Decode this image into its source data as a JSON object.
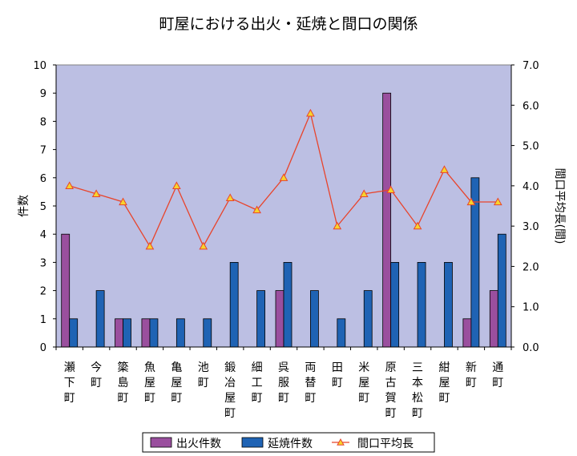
{
  "chart_data": {
    "type": "bar",
    "title": "町屋における出火・延焼と間口の関係",
    "ylabel": "件数",
    "y2label": "間口平均長(間)",
    "ylim": [
      0,
      10
    ],
    "y2lim": [
      0,
      7
    ],
    "yticks": [
      "0",
      "1",
      "2",
      "3",
      "4",
      "5",
      "6",
      "7",
      "8",
      "9",
      "10"
    ],
    "y2ticks": [
      "0.0",
      "1.0",
      "2.0",
      "3.0",
      "4.0",
      "5.0",
      "6.0",
      "7.0"
    ],
    "grid": false,
    "legend_position": "bottom",
    "categories": [
      "瀬下町",
      "今町",
      "簗島町",
      "魚屋町",
      "亀屋町",
      "池町",
      "鍛冶屋町",
      "細工町",
      "呉服町",
      "両替町",
      "田町",
      "米屋町",
      "原古賀町",
      "三本松町",
      "紺屋町",
      "新町",
      "通町"
    ],
    "series": [
      {
        "name": "出火件数",
        "type": "bar",
        "color": "#9a4f9e",
        "values": [
          4,
          0,
          1,
          1,
          0,
          0,
          0,
          0,
          2,
          0,
          0,
          0,
          9,
          0,
          0,
          1,
          2
        ]
      },
      {
        "name": "延焼件数",
        "type": "bar",
        "color": "#1f63b4",
        "values": [
          1,
          2,
          1,
          1,
          1,
          1,
          3,
          2,
          3,
          2,
          1,
          2,
          3,
          3,
          3,
          6,
          4
        ]
      },
      {
        "name": "間口平均長",
        "type": "line",
        "axis": "right",
        "color": "#e8442c",
        "marker": "triangle",
        "values": [
          4.0,
          3.8,
          3.6,
          2.5,
          4.0,
          2.5,
          3.7,
          3.4,
          4.2,
          5.8,
          3.0,
          3.8,
          3.9,
          3.0,
          4.4,
          3.6,
          3.6
        ]
      }
    ],
    "plot_background": "#bcbfe3"
  }
}
